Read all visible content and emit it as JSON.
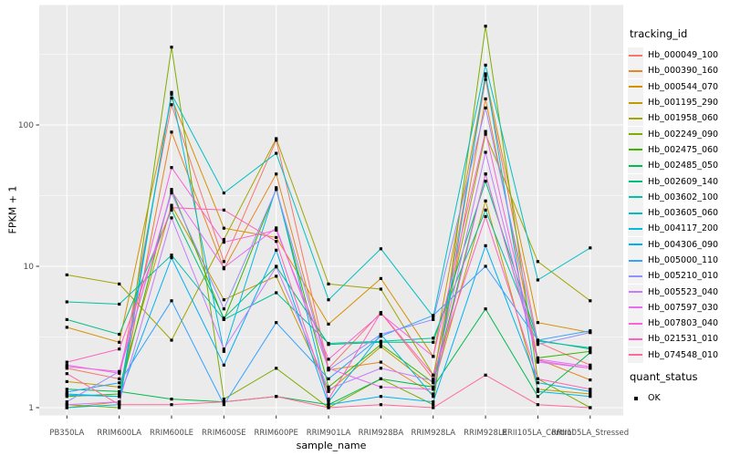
{
  "panel": {
    "bg_color": "#EBEBEB",
    "grid_color": "#FFFFFF",
    "point_color": "#000000",
    "tick_mark_color": "#333333",
    "tick_label_color": "#4D4D4D",
    "axis_title_color": "#000000"
  },
  "chart_data": {
    "type": "line",
    "title": "",
    "xlabel": "sample_name",
    "ylabel": "FPKM + 1",
    "y_scale": "log10",
    "ylim_visible": [
      0.89,
      700
    ],
    "grid": "on",
    "legend_position": "right",
    "legend_title": "tracking_id",
    "legend2_title": "quant_status",
    "legend2_items": [
      {
        "label": "OK",
        "marker": "black-square"
      }
    ],
    "x_categories": [
      "PB350LA",
      "RRIM600LA",
      "RRIM600LE",
      "RRIM600SE",
      "RRIM600PE",
      "RRIM901LA",
      "RRIM928BA",
      "RRIM928LA",
      "RRIM928LE",
      "RRII105LA_Control",
      "RRII105LA_Stressed"
    ],
    "y_ticks": [
      {
        "label": "1",
        "value": 1
      },
      {
        "label": "10",
        "value": 10
      },
      {
        "label": "100",
        "value": 100
      }
    ],
    "y_minor_gridlines": [
      3.162,
      31.62,
      316.2
    ],
    "series": [
      {
        "name": "Hb_000049_100",
        "color": "#F8766D",
        "values": [
          1.9,
          1.6,
          139,
          10.8,
          78,
          1.9,
          4.7,
          1.6,
          210,
          2.9,
          2.0
        ]
      },
      {
        "name": "Hb_000390_160",
        "color": "#E88526",
        "values": [
          1.0,
          1.1,
          89,
          9.6,
          45,
          1.85,
          2.1,
          1.25,
          153,
          2.2,
          1.57
        ]
      },
      {
        "name": "Hb_000544_070",
        "color": "#D89000",
        "values": [
          3.7,
          2.9,
          155,
          18.6,
          16,
          3.9,
          8.2,
          2.3,
          222,
          4.0,
          3.4
        ]
      },
      {
        "name": "Hb_001195_290",
        "color": "#C09B00",
        "values": [
          1.53,
          1.4,
          27,
          5.8,
          8.5,
          1.3,
          2.7,
          1.4,
          29,
          1.35,
          1.25
        ]
      },
      {
        "name": "Hb_001958_060",
        "color": "#A3A500",
        "values": [
          8.7,
          7.5,
          3.0,
          15.5,
          80,
          7.5,
          6.9,
          1.7,
          86,
          10.8,
          5.7
        ]
      },
      {
        "name": "Hb_002249_090",
        "color": "#7CAE00",
        "values": [
          1.05,
          1.0,
          355,
          1.15,
          1.9,
          1.0,
          1.6,
          1.05,
          500,
          1.6,
          1.0
        ]
      },
      {
        "name": "Hb_002475_060",
        "color": "#39B600",
        "values": [
          1.2,
          1.25,
          35,
          4.2,
          35,
          1.4,
          2.8,
          1.5,
          45,
          2.25,
          2.5
        ]
      },
      {
        "name": "Hb_002485_050",
        "color": "#00BB4E",
        "values": [
          1.35,
          1.3,
          1.15,
          1.1,
          1.2,
          1.05,
          1.6,
          1.4,
          5,
          1.2,
          2.45
        ]
      },
      {
        "name": "Hb_002609_140",
        "color": "#00BF7D",
        "values": [
          4.2,
          3.3,
          25,
          4.3,
          10,
          2.8,
          2.9,
          2.9,
          40,
          3.0,
          2.6
        ]
      },
      {
        "name": "Hb_003602_100",
        "color": "#00C1A3",
        "values": [
          5.6,
          5.4,
          12,
          4.2,
          6.5,
          2.85,
          2.95,
          3.1,
          25,
          2.95,
          2.65
        ]
      },
      {
        "name": "Hb_003605_060",
        "color": "#00BFC4",
        "values": [
          1.25,
          1.2,
          165,
          33,
          63,
          5.8,
          13.3,
          4.4,
          265,
          8.0,
          13.5
        ]
      },
      {
        "name": "Hb_004117_200",
        "color": "#00BAE0",
        "values": [
          1.0,
          1.05,
          170,
          2.5,
          36,
          1.1,
          3.3,
          1.2,
          230,
          1.3,
          1.2
        ]
      },
      {
        "name": "Hb_004306_090",
        "color": "#00B0F6",
        "values": [
          1.23,
          1.2,
          11.5,
          2.0,
          13,
          1.05,
          1.2,
          1.1,
          14,
          1.5,
          1.3
        ]
      },
      {
        "name": "Hb_005000_110",
        "color": "#35A2FF",
        "values": [
          1.29,
          1.5,
          5.7,
          1.05,
          4,
          1.6,
          3.2,
          4.5,
          10,
          3.0,
          3.5
        ]
      },
      {
        "name": "Hb_005210_010",
        "color": "#9590FF",
        "values": [
          1.1,
          1.8,
          33,
          5.0,
          35,
          1.85,
          3.3,
          4.2,
          132,
          2.8,
          3.4
        ]
      },
      {
        "name": "Hb_005523_040",
        "color": "#C77CFF",
        "values": [
          1.05,
          1.1,
          22,
          2.6,
          9.9,
          1.35,
          1.9,
          1.55,
          64,
          2.1,
          1.9
        ]
      },
      {
        "name": "Hb_007597_030",
        "color": "#E76BF3",
        "values": [
          2.0,
          1.75,
          34,
          9.8,
          18.7,
          1.9,
          1.4,
          1.35,
          45,
          2.2,
          1.95
        ]
      },
      {
        "name": "Hb_007803_040",
        "color": "#FA62DB",
        "values": [
          1.95,
          1.8,
          50,
          14.8,
          18,
          2.2,
          4.6,
          2.3,
          90,
          2.15,
          1.9
        ]
      },
      {
        "name": "Hb_021531_010",
        "color": "#FF62BC",
        "values": [
          2.1,
          2.6,
          26,
          25,
          15,
          1.15,
          4.7,
          1.7,
          22.5,
          1.6,
          1.35
        ]
      },
      {
        "name": "Hb_074548_010",
        "color": "#FF6A98",
        "values": [
          1.74,
          1.05,
          1.05,
          1.1,
          1.2,
          1.0,
          1.05,
          1.0,
          1.7,
          1.05,
          1.0
        ]
      }
    ]
  }
}
